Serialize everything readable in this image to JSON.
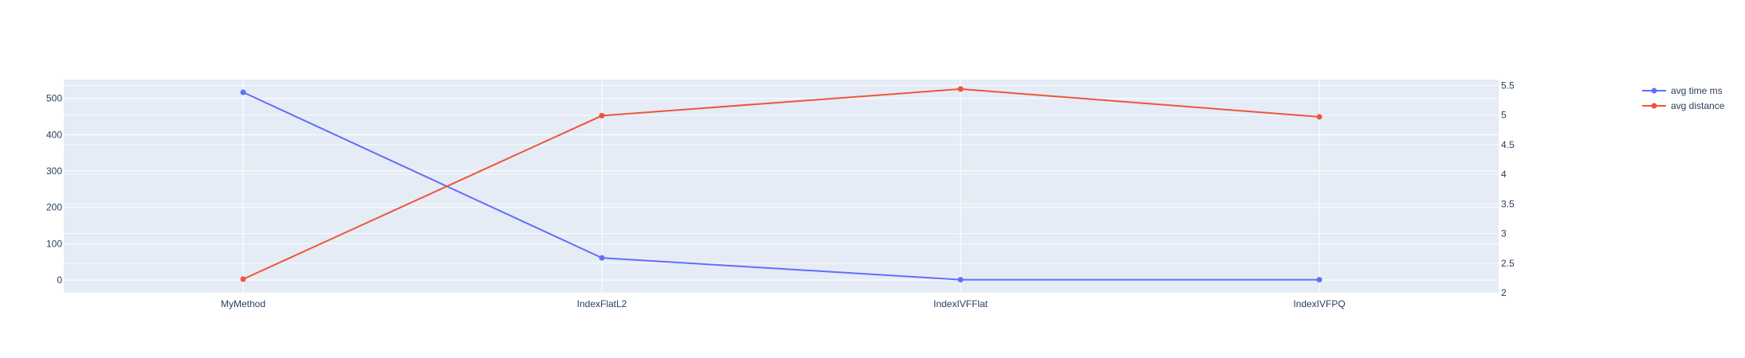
{
  "chart_data": {
    "type": "line",
    "categories": [
      "MyMethod",
      "IndexFlatL2",
      "IndexIVFFlat",
      "IndexIVFPQ"
    ],
    "series": [
      {
        "name": "avg time ms",
        "axis": "left",
        "color": "#636efa",
        "values": [
          517,
          61,
          1,
          1
        ]
      },
      {
        "name": "avg distance",
        "axis": "right",
        "color": "#ef553b",
        "values": [
          2.23,
          4.99,
          5.44,
          4.97
        ]
      }
    ],
    "y_left": {
      "range": [
        -35,
        552
      ],
      "ticks": [
        0,
        100,
        200,
        300,
        400,
        500
      ]
    },
    "y_right": {
      "range": [
        2.0,
        5.6
      ],
      "ticks": [
        2,
        2.5,
        3,
        3.5,
        4,
        4.5,
        5,
        5.5
      ]
    },
    "grid": true,
    "legend_position": "top-right",
    "plot_bg": "#e5ecf6",
    "grid_color": "#ffffff",
    "text_color": "#2a3f5f"
  }
}
